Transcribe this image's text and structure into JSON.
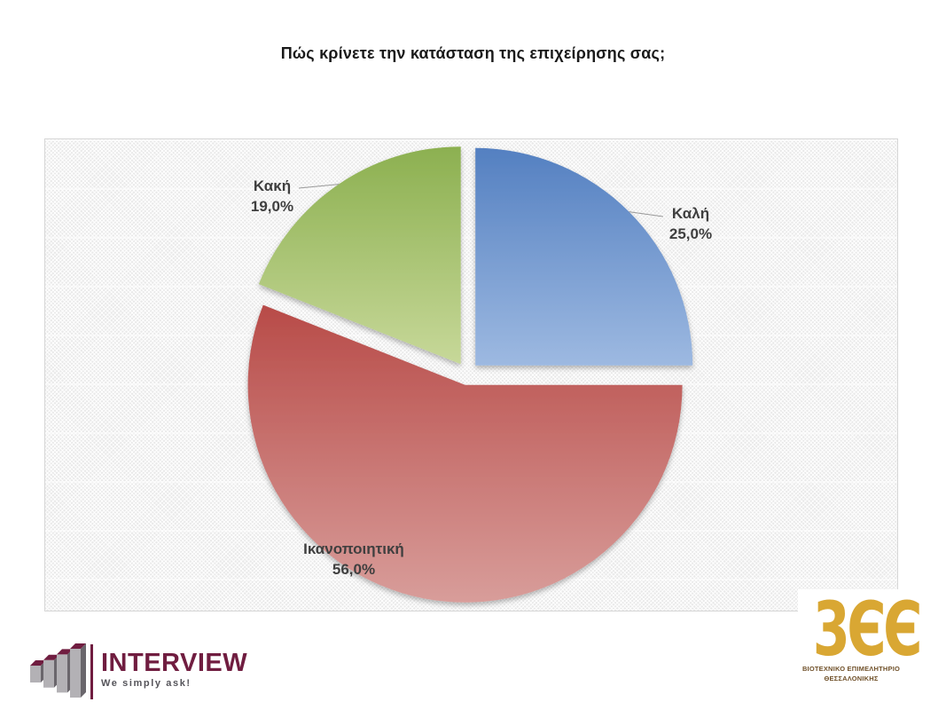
{
  "chart_data": {
    "type": "pie",
    "title": "Πώς κρίνετε την κατάσταση της επιχείρησης σας;",
    "categories": [
      "Καλή",
      "Ικανοποιητική",
      "Κακή"
    ],
    "values": [
      25.0,
      56.0,
      19.0
    ],
    "labels": [
      {
        "name": "Καλή",
        "pct": "25,0%"
      },
      {
        "name": "Ικανοποιητική",
        "pct": "56,0%"
      },
      {
        "name": "Κακή",
        "pct": "19,0%"
      }
    ],
    "colors": [
      {
        "dark": "#5480c1",
        "light": "#9db9e1"
      },
      {
        "dark": "#b84b48",
        "light": "#d89d9a"
      },
      {
        "dark": "#8cb050",
        "light": "#c7d899"
      }
    ],
    "start_angle_deg": 0,
    "direction": "clockwise",
    "exploded": true,
    "legend": "none",
    "value_format": "percent, comma decimal separator",
    "label_style": "category name + percentage, outside with leader lines"
  },
  "footer": {
    "interview_logo": {
      "brand": "INTERVIEW",
      "tagline": "We simply ask!",
      "brand_color": "#701d40",
      "tagline_color": "#55545a",
      "bar_front": "#b3b1b5",
      "bar_side": "#6a666c"
    },
    "beth_logo": {
      "monogram": "3ЄЄ",
      "org_line1": "ΒΙΟΤΕΧΝΙΚΟ ΕΠΙΜΕΛΗΤΗΡΙΟ",
      "org_line2": "ΘΕΣΣΑΛΟΝΙΚΗΣ",
      "gold": "#d9a733",
      "text_color": "#70512a"
    }
  }
}
